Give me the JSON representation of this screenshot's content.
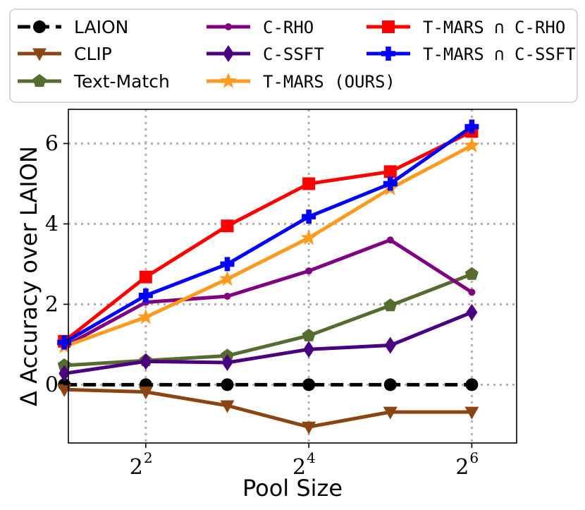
{
  "chart_data": {
    "type": "line",
    "xlabel": "Pool Size",
    "ylabel": "Δ Accuracy over LAION",
    "xscale": "log2",
    "xlim_log2": [
      1.05,
      6.55
    ],
    "ylim": [
      -1.45,
      6.85
    ],
    "grid": true,
    "legend_position": "top (outside, 3 columns)",
    "x": [
      2,
      4,
      8,
      16,
      32,
      64
    ],
    "xticks": [
      {
        "base": "2",
        "exp": "2",
        "value": 4
      },
      {
        "base": "2",
        "exp": "4",
        "value": 16
      },
      {
        "base": "2",
        "exp": "6",
        "value": 64
      }
    ],
    "yticks": [
      0,
      2,
      4,
      6
    ],
    "series": [
      {
        "name": "LAION",
        "label_mono": false,
        "color": "#000000",
        "marker": "circle",
        "dashed": true,
        "values": [
          0,
          0,
          0,
          0,
          0,
          0
        ]
      },
      {
        "name": "CLIP",
        "label_mono": false,
        "color": "#8B4513",
        "marker": "triangle-down",
        "dashed": false,
        "values": [
          -0.12,
          -0.18,
          -0.52,
          -1.05,
          -0.68,
          -0.68
        ]
      },
      {
        "name": "Text-Match",
        "label_mono": false,
        "color": "#556B2F",
        "marker": "pentagon",
        "dashed": false,
        "values": [
          0.48,
          0.6,
          0.72,
          1.22,
          1.97,
          2.75
        ]
      },
      {
        "name": "C-RHO",
        "label_mono": true,
        "color": "#800080",
        "marker": "small-circle",
        "dashed": false,
        "values": [
          0.95,
          2.05,
          2.2,
          2.83,
          3.6,
          2.3
        ]
      },
      {
        "name": "C-SSFT",
        "label_mono": true,
        "color": "#4B0082",
        "marker": "diamond",
        "dashed": false,
        "values": [
          0.28,
          0.58,
          0.55,
          0.88,
          0.98,
          1.8
        ]
      },
      {
        "name": "T-MARS (OURS)",
        "label_mono": true,
        "color": "#FF9A1F",
        "marker": "star",
        "dashed": false,
        "values": [
          0.95,
          1.68,
          2.63,
          3.65,
          4.88,
          5.95
        ]
      },
      {
        "name": "T-MARS ∩ C-RHO",
        "label_mono": true,
        "color": "#FF0000",
        "marker": "square",
        "dashed": false,
        "values": [
          1.08,
          2.68,
          3.95,
          5.0,
          5.3,
          6.3
        ]
      },
      {
        "name": "T-MARS ∩ C-SSFT",
        "label_mono": true,
        "color": "#0000FF",
        "marker": "plus",
        "dashed": false,
        "values": [
          1.05,
          2.22,
          3.0,
          4.18,
          5.0,
          6.42
        ]
      }
    ]
  }
}
